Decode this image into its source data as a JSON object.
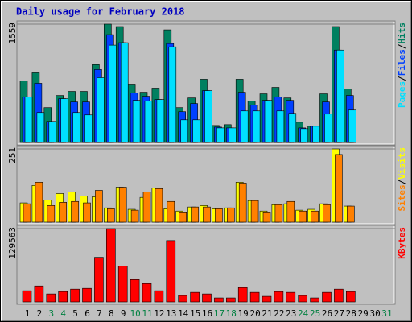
{
  "chart_data": [
    {
      "type": "bar",
      "title": "Daily usage for February 2018",
      "ylim": [
        0,
        1559
      ],
      "yticks": [
        1559
      ],
      "legend_separator": "/",
      "series": [
        {
          "name": "Hits",
          "color": "#008060",
          "values": [
            812,
            918,
            459,
            619,
            673,
            673,
            1025,
            1559,
            1527,
            769,
            662,
            716,
            1484,
            459,
            587,
            833,
            224,
            235,
            833,
            545,
            641,
            726,
            587,
            267,
            214,
            641,
            1527,
            705,
            0,
            0,
            0
          ]
        },
        {
          "name": "Files",
          "color": "#0040ff",
          "values": [
            598,
            780,
            278,
            577,
            534,
            534,
            961,
            1420,
            1314,
            651,
            609,
            566,
            1303,
            406,
            513,
            683,
            203,
            192,
            662,
            491,
            555,
            598,
            555,
            192,
            214,
            534,
            1217,
            619,
            0,
            0,
            0
          ]
        },
        {
          "name": "Pages",
          "color": "#00e0ff",
          "values": [
            598,
            395,
            278,
            577,
            395,
            363,
            854,
            1282,
            1314,
            555,
            545,
            566,
            1260,
            299,
            299,
            683,
            192,
            192,
            416,
            416,
            555,
            416,
            384,
            182,
            214,
            374,
            1217,
            427,
            0,
            0,
            0
          ]
        }
      ]
    },
    {
      "type": "bar",
      "ylim": [
        0,
        251
      ],
      "yticks": [
        251
      ],
      "legend_separator": "/",
      "series": [
        {
          "name": "Visits",
          "color": "#ffff00",
          "values": [
            66,
            126,
            76,
            98,
            104,
            90,
            87,
            49,
            120,
            44,
            85,
            117,
            46,
            38,
            52,
            57,
            46,
            49,
            137,
            74,
            38,
            60,
            63,
            41,
            44,
            63,
            251,
            55,
            0,
            0,
            0
          ]
        },
        {
          "name": "Sites",
          "color": "#ff8000",
          "values": [
            63,
            137,
            57,
            68,
            71,
            66,
            109,
            46,
            120,
            41,
            104,
            115,
            71,
            35,
            52,
            52,
            46,
            49,
            134,
            74,
            35,
            60,
            71,
            38,
            38,
            60,
            232,
            55,
            0,
            0,
            0
          ]
        }
      ]
    },
    {
      "type": "bar",
      "ylim": [
        0,
        129563
      ],
      "yticks": [
        129563
      ],
      "categories": [
        "1",
        "2",
        "3",
        "4",
        "5",
        "6",
        "7",
        "8",
        "9",
        "10",
        "11",
        "12",
        "13",
        "14",
        "15",
        "16",
        "17",
        "18",
        "19",
        "20",
        "21",
        "22",
        "23",
        "24",
        "25",
        "26",
        "27",
        "28",
        "29",
        "30",
        "31"
      ],
      "category_colors": [
        "#000000",
        "#000000",
        "#008040",
        "#008040",
        "#000000",
        "#000000",
        "#000000",
        "#000000",
        "#000000",
        "#008040",
        "#008040",
        "#000000",
        "#000000",
        "#000000",
        "#000000",
        "#000000",
        "#008040",
        "#008040",
        "#000000",
        "#000000",
        "#000000",
        "#000000",
        "#000000",
        "#008040",
        "#008040",
        "#000000",
        "#000000",
        "#000000",
        "#000000",
        "#000000",
        "#008040"
      ],
      "series": [
        {
          "name": "KBytes",
          "color": "#ff0000",
          "values": [
            19712,
            28160,
            14080,
            18304,
            22528,
            23936,
            78848,
            129563,
            63360,
            39424,
            32384,
            19712,
            108416,
            11264,
            16896,
            14080,
            7040,
            7040,
            25344,
            16896,
            9856,
            18304,
            16896,
            11264,
            7040,
            16896,
            22528,
            18304,
            0,
            0,
            0
          ]
        }
      ]
    }
  ]
}
